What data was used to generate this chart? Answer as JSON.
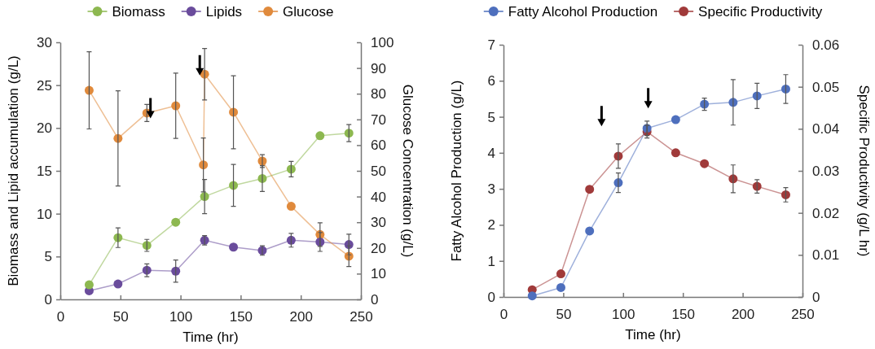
{
  "chart_data": [
    {
      "type": "line",
      "xlabel": "Time (hr)",
      "ylabel": "Biomass and Lipid accumulation  (g/L)",
      "y2label": "Glucose Concentration (g/L)",
      "xlim": [
        0,
        250
      ],
      "xticks": [
        0,
        50,
        100,
        150,
        200,
        250
      ],
      "ylim": [
        0,
        30
      ],
      "yticks": [
        0,
        5,
        10,
        15,
        20,
        25,
        30
      ],
      "y2lim": [
        0,
        100
      ],
      "y2ticks": [
        0,
        10,
        20,
        30,
        40,
        50,
        60,
        70,
        80,
        90,
        100
      ],
      "legend": "top",
      "marker": "circle",
      "grid": false,
      "series": [
        {
          "name": "Biomass",
          "color": "#8db850",
          "x": [
            24,
            48,
            72,
            96,
            120,
            144,
            168,
            192,
            216,
            240
          ],
          "values": [
            1.7,
            7.2,
            6.3,
            9.0,
            12.0,
            13.3,
            14.1,
            15.2,
            19.1,
            19.4
          ],
          "errors": [
            null,
            1.15,
            0.7,
            null,
            2,
            2.45,
            1.5,
            0.9,
            null,
            1
          ]
        },
        {
          "name": "Lipids",
          "color": "#6a4c9c",
          "x": [
            24,
            48,
            72,
            96,
            120,
            144,
            168,
            192,
            216,
            240
          ],
          "values": [
            1.0,
            1.8,
            3.4,
            3.3,
            6.9,
            6.1,
            5.7,
            6.9,
            6.7,
            6.4
          ],
          "errors": [
            null,
            null,
            0.75,
            1.3,
            0.55,
            null,
            0.55,
            0.8,
            1.1,
            1.2
          ]
        },
        {
          "name": "Glucose",
          "color": "#e08a3c",
          "axis": "y2",
          "x": [
            24,
            48,
            72,
            96,
            119,
            120,
            144,
            168,
            192,
            216,
            240
          ],
          "values": [
            81.3,
            62.6,
            72.5,
            75.3,
            52.3,
            87.6,
            72.8,
            53.8,
            36.2,
            25.2,
            16.8
          ],
          "errors": [
            15,
            18.5,
            3.3,
            12.7,
            10.5,
            10,
            14.2,
            2.5,
            null,
            4.6,
            4
          ]
        }
      ]
    },
    {
      "type": "line",
      "xlabel": "Time (hr)",
      "ylabel": "Fatty Alcohol Production (g/L)",
      "y2label": "Specific Productivity (g/L hr)",
      "xlim": [
        0,
        250
      ],
      "xticks": [
        0,
        50,
        100,
        150,
        200,
        250
      ],
      "ylim": [
        0,
        7
      ],
      "yticks": [
        0,
        1,
        2,
        3,
        4,
        5,
        6,
        7
      ],
      "y2lim": [
        0,
        0.06
      ],
      "y2ticks": [
        0,
        0.01,
        0.02,
        0.03,
        0.04,
        0.05,
        0.06
      ],
      "legend": "top",
      "marker": "circle",
      "grid": false,
      "series": [
        {
          "name": "Fatty Alcohol Production",
          "color": "#4e6fbd",
          "x": [
            24,
            48,
            72,
            96,
            120,
            144,
            168,
            192,
            212,
            236
          ],
          "values": [
            0.03,
            0.26,
            1.83,
            3.17,
            4.68,
            4.92,
            5.35,
            5.4,
            5.58,
            5.77
          ],
          "errors": [
            null,
            null,
            null,
            0.27,
            0.2,
            null,
            0.17,
            0.63,
            0.35,
            0.4
          ]
        },
        {
          "name": "Specific Productivity",
          "color": "#a03a3a",
          "axis": "y2",
          "x": [
            24,
            48,
            72,
            96,
            120,
            144,
            168,
            192,
            212,
            236
          ],
          "values": [
            0.0017,
            0.0055,
            0.0256,
            0.0335,
            0.0393,
            0.0343,
            0.0317,
            0.0281,
            0.0263,
            0.0243
          ],
          "errors": [
            null,
            null,
            null,
            0.0029,
            0.0015,
            null,
            null,
            0.0033,
            0.0016,
            0.0017
          ]
        }
      ]
    }
  ]
}
